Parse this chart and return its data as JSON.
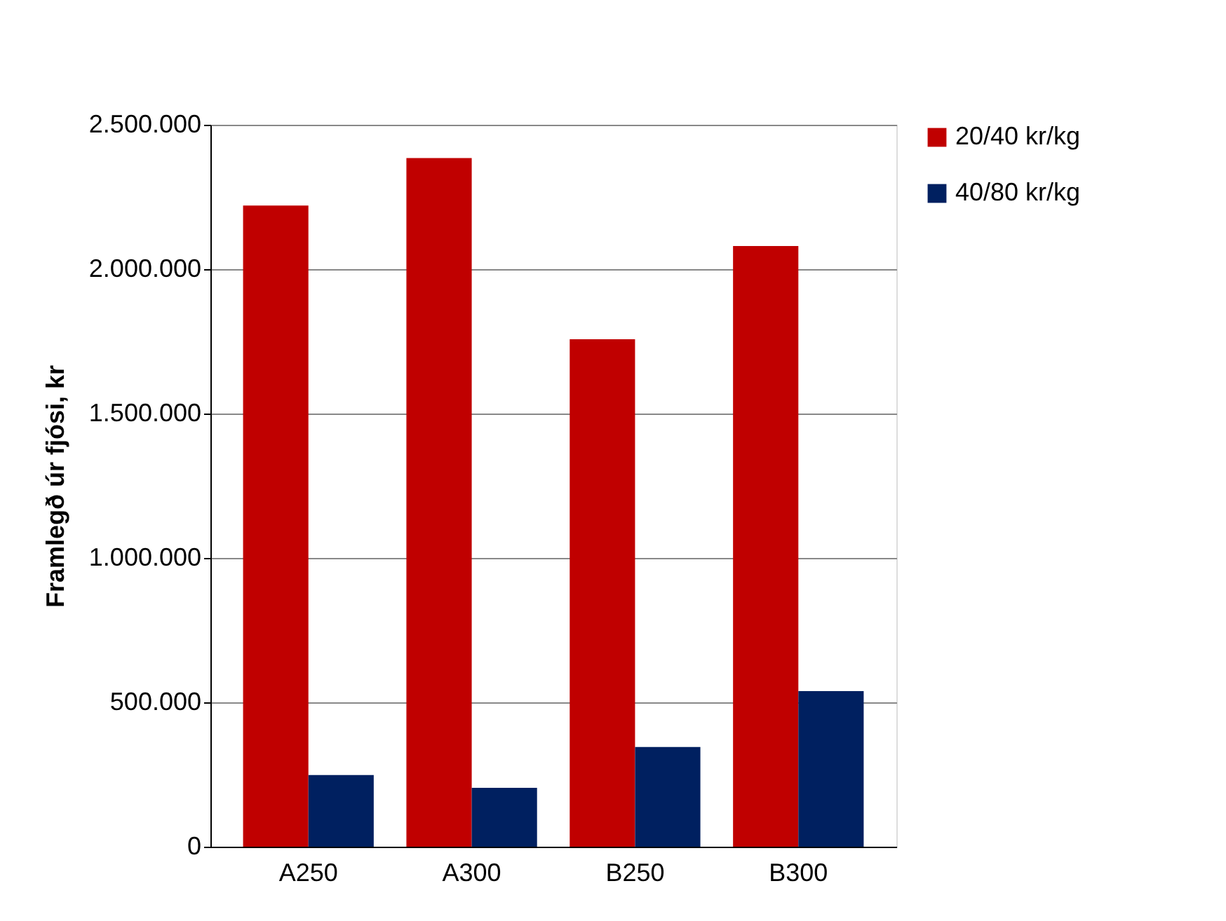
{
  "chart_data": {
    "type": "bar",
    "ylabel": "Framlegð úr fjósi, kr",
    "categories": [
      "A250",
      "A300",
      "B250",
      "B300"
    ],
    "series": [
      {
        "name": "20/40 kr/kg",
        "color": "#c00000",
        "values": [
          2220000,
          2385000,
          1757000,
          2080000
        ]
      },
      {
        "name": "40/80 kr/kg",
        "color": "#002060",
        "values": [
          248000,
          204000,
          345000,
          539000
        ]
      }
    ],
    "ylim": [
      0,
      2500000
    ],
    "yticks": [
      0,
      {
        "value": 500000,
        "label": "500.000"
      },
      {
        "value": 1000000,
        "label": "1.000.000"
      },
      {
        "value": 1500000,
        "label": "1.500.000"
      },
      {
        "value": 2000000,
        "label": "2.000.000"
      },
      {
        "value": 2500000,
        "label": "2.500.000"
      }
    ],
    "grid": "y",
    "legend": "right"
  }
}
